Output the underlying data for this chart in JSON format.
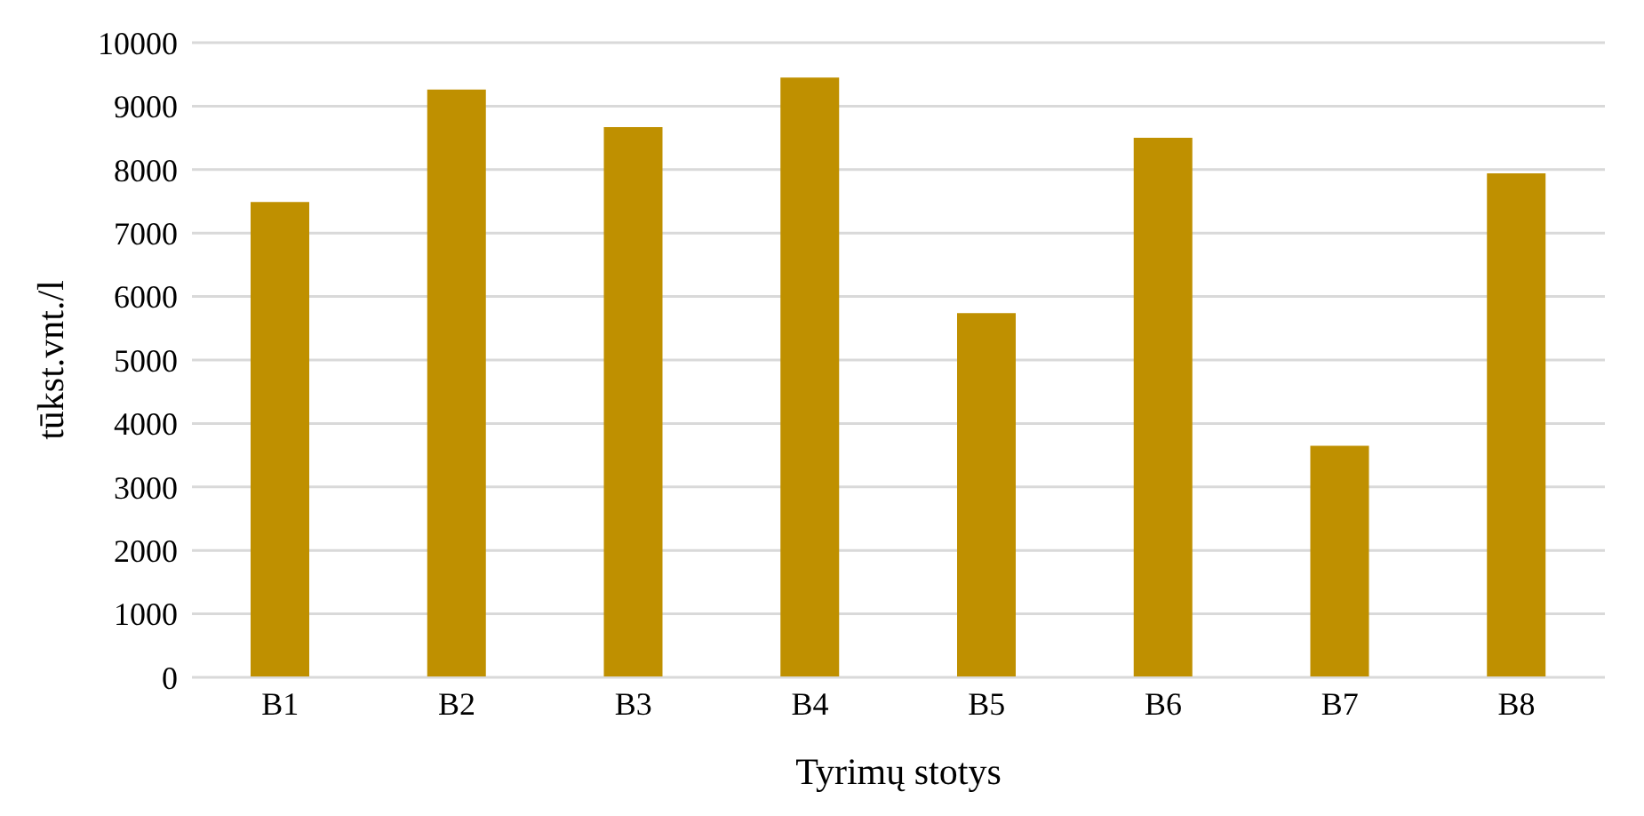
{
  "chart_data": {
    "type": "bar",
    "xlabel": "Tyrimų stotys",
    "ylabel": "tūkst.vnt./l",
    "categories": [
      "B1",
      "B2",
      "B3",
      "B4",
      "B5",
      "B6",
      "B7",
      "B8"
    ],
    "values": [
      7490,
      9260,
      8670,
      9450,
      5740,
      8500,
      3650,
      7940
    ],
    "color": "#bf9000",
    "ylim": [
      0,
      10000
    ],
    "yticks": [
      0,
      1000,
      2000,
      3000,
      4000,
      5000,
      6000,
      7000,
      8000,
      9000,
      10000
    ],
    "grid": "y",
    "legend": false
  }
}
